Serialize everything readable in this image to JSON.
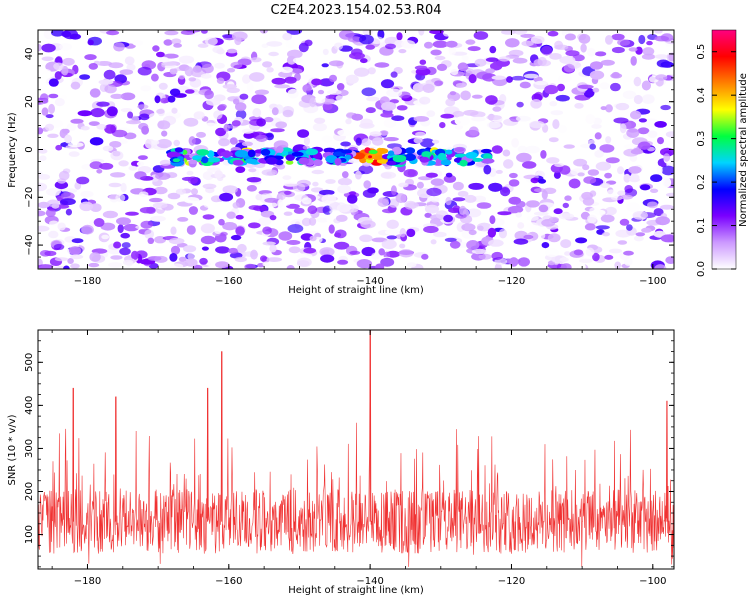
{
  "title": "C2E4.2023.154.02.53.R04",
  "chart_data": [
    {
      "type": "heatmap",
      "xlabel": "Height of straight line (km)",
      "ylabel": "Frequency (Hz)",
      "xlim": [
        -187,
        -97
      ],
      "ylim": [
        -50,
        50
      ],
      "xticks": [
        -180,
        -160,
        -140,
        -120,
        -100
      ],
      "yticks": [
        -40,
        -20,
        0,
        20,
        40
      ],
      "colorbar": {
        "label": "Normalized spectral amplitude",
        "range": [
          0,
          0.55
        ],
        "ticks": [
          "0.0",
          "0.1",
          "0.2",
          "0.3",
          "0.4",
          "0.5"
        ],
        "colormap": [
          "#ffffff",
          "#cc99ff",
          "#7a00ff",
          "#0000ff",
          "#00d4ff",
          "#00ff40",
          "#ffff00",
          "#ff8000",
          "#ff0000",
          "#ff0080"
        ]
      },
      "band": {
        "frequency": -3,
        "x_range": [
          -168,
          -123
        ],
        "peak_x": -140,
        "peak_value": 0.5
      }
    },
    {
      "type": "line",
      "xlabel": "Height of straight line (km)",
      "ylabel": "SNR (10 * v/v)",
      "xlim": [
        -187,
        -97
      ],
      "ylim": [
        20,
        575
      ],
      "xticks": [
        -180,
        -160,
        -140,
        -120,
        -100
      ],
      "yticks": [
        100,
        200,
        300,
        400,
        500
      ],
      "color": "#f03232",
      "baseline": 130,
      "peaks": [
        {
          "x": -140,
          "y": 575
        },
        {
          "x": -161,
          "y": 525
        },
        {
          "x": -163,
          "y": 440
        },
        {
          "x": -98,
          "y": 410
        },
        {
          "x": -176,
          "y": 420
        },
        {
          "x": -182,
          "y": 440
        }
      ]
    }
  ]
}
